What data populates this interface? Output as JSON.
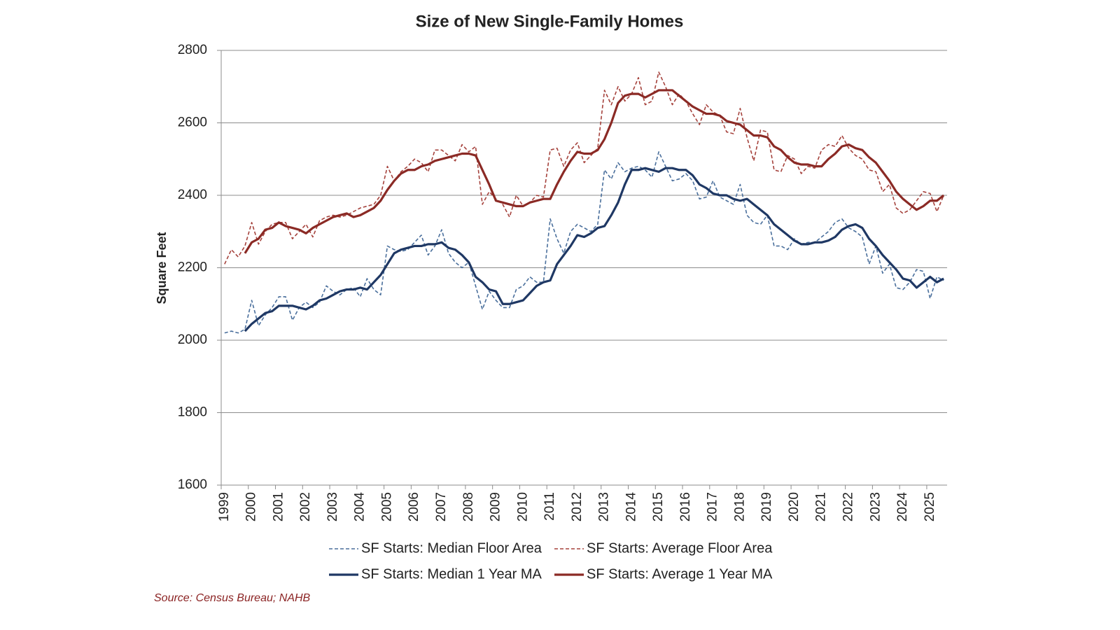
{
  "chart_data": {
    "type": "line",
    "title": "Size of New Single-Family Homes",
    "y_label": "Square Feet",
    "source": "Source: Census Bureau; NAHB",
    "ylim": [
      1600,
      2800
    ],
    "yticks": [
      1600,
      1800,
      2000,
      2200,
      2400,
      2600,
      2800
    ],
    "grid": true,
    "legend": "bottom",
    "categories": [
      "1999",
      null,
      null,
      null,
      "2000",
      null,
      null,
      null,
      "2001",
      null,
      null,
      null,
      "2002",
      null,
      null,
      null,
      "2003",
      null,
      null,
      null,
      "2004",
      null,
      null,
      null,
      "2005",
      null,
      null,
      null,
      "2006",
      null,
      null,
      null,
      "2007",
      null,
      null,
      null,
      "2008",
      null,
      null,
      null,
      "2009",
      null,
      null,
      null,
      "2010",
      null,
      null,
      null,
      "2011",
      null,
      null,
      null,
      "2012",
      null,
      null,
      null,
      "2013",
      null,
      null,
      null,
      "2014",
      null,
      null,
      null,
      "2015",
      null,
      null,
      null,
      "2016",
      null,
      null,
      null,
      "2017",
      null,
      null,
      null,
      "2018",
      null,
      null,
      null,
      "2019",
      null,
      null,
      null,
      "2020",
      null,
      null,
      null,
      "2021",
      null,
      null,
      null,
      "2022",
      null,
      null,
      null,
      "2023",
      null,
      null,
      null,
      "2024",
      null,
      null,
      null,
      "2025",
      null,
      null
    ],
    "series": [
      {
        "name": "SF Starts: Median Floor Area",
        "color": "#4a6f9c",
        "style": "dashed",
        "values": [
          2020,
          2025,
          2020,
          2030,
          2110,
          2040,
          2070,
          2090,
          2120,
          2120,
          2055,
          2090,
          2105,
          2090,
          2105,
          2150,
          2135,
          2125,
          2140,
          2145,
          2120,
          2170,
          2140,
          2125,
          2260,
          2250,
          2245,
          2250,
          2270,
          2290,
          2235,
          2260,
          2305,
          2240,
          2215,
          2200,
          2215,
          2150,
          2085,
          2135,
          2110,
          2090,
          2090,
          2140,
          2150,
          2175,
          2160,
          2160,
          2335,
          2280,
          2240,
          2300,
          2320,
          2310,
          2300,
          2320,
          2470,
          2445,
          2490,
          2465,
          2475,
          2480,
          2470,
          2450,
          2520,
          2480,
          2440,
          2445,
          2460,
          2440,
          2390,
          2395,
          2440,
          2395,
          2385,
          2375,
          2430,
          2345,
          2325,
          2320,
          2345,
          2260,
          2260,
          2250,
          2280,
          2265,
          2270,
          2270,
          2285,
          2300,
          2325,
          2335,
          2310,
          2300,
          2285,
          2210,
          2260,
          2185,
          2210,
          2145,
          2140,
          2160,
          2195,
          2190,
          2115,
          2175,
          2165
        ]
      },
      {
        "name": "SF Starts: Average Floor Area",
        "color": "#a5423c",
        "style": "dashed",
        "values": [
          2210,
          2250,
          2230,
          2260,
          2325,
          2265,
          2300,
          2320,
          2325,
          2325,
          2280,
          2300,
          2320,
          2285,
          2330,
          2340,
          2345,
          2340,
          2345,
          2355,
          2365,
          2370,
          2375,
          2400,
          2480,
          2440,
          2465,
          2480,
          2500,
          2490,
          2465,
          2525,
          2525,
          2510,
          2495,
          2540,
          2520,
          2535,
          2375,
          2410,
          2390,
          2375,
          2340,
          2400,
          2370,
          2380,
          2400,
          2395,
          2525,
          2530,
          2480,
          2525,
          2545,
          2490,
          2510,
          2530,
          2690,
          2650,
          2700,
          2660,
          2680,
          2725,
          2650,
          2660,
          2740,
          2700,
          2650,
          2680,
          2660,
          2625,
          2595,
          2650,
          2630,
          2620,
          2575,
          2570,
          2640,
          2560,
          2495,
          2580,
          2575,
          2470,
          2465,
          2510,
          2500,
          2460,
          2480,
          2475,
          2525,
          2540,
          2535,
          2565,
          2530,
          2510,
          2500,
          2470,
          2465,
          2410,
          2430,
          2365,
          2350,
          2360,
          2385,
          2410,
          2405,
          2355,
          2400
        ]
      },
      {
        "name": "SF Starts: Median 1 Year MA",
        "color": "#1f3864",
        "style": "solid",
        "values": [
          null,
          null,
          null,
          2025,
          2045,
          2060,
          2075,
          2080,
          2095,
          2095,
          2095,
          2090,
          2085,
          2095,
          2110,
          2115,
          2125,
          2135,
          2140,
          2140,
          2145,
          2140,
          2160,
          2180,
          2210,
          2240,
          2250,
          2255,
          2260,
          2260,
          2265,
          2265,
          2270,
          2255,
          2250,
          2235,
          2215,
          2175,
          2160,
          2140,
          2135,
          2100,
          2100,
          2105,
          2110,
          2130,
          2150,
          2160,
          2165,
          2210,
          2235,
          2260,
          2290,
          2285,
          2295,
          2310,
          2315,
          2345,
          2380,
          2430,
          2470,
          2470,
          2475,
          2470,
          2465,
          2475,
          2475,
          2470,
          2470,
          2455,
          2430,
          2420,
          2405,
          2400,
          2400,
          2390,
          2385,
          2390,
          2375,
          2360,
          2345,
          2320,
          2305,
          2290,
          2275,
          2265,
          2265,
          2270,
          2270,
          2275,
          2285,
          2305,
          2315,
          2320,
          2310,
          2280,
          2260,
          2235,
          2215,
          2195,
          2170,
          2165,
          2145,
          2160,
          2175,
          2160,
          2170
        ]
      },
      {
        "name": "SF Starts: Average 1 Year MA",
        "color": "#8b2a25",
        "style": "solid",
        "values": [
          null,
          null,
          null,
          2240,
          2270,
          2280,
          2305,
          2310,
          2325,
          2315,
          2310,
          2305,
          2295,
          2310,
          2320,
          2330,
          2340,
          2345,
          2350,
          2340,
          2345,
          2355,
          2365,
          2385,
          2415,
          2440,
          2460,
          2470,
          2470,
          2480,
          2485,
          2495,
          2500,
          2505,
          2510,
          2515,
          2515,
          2510,
          2470,
          2430,
          2385,
          2380,
          2375,
          2370,
          2370,
          2380,
          2385,
          2390,
          2390,
          2430,
          2465,
          2495,
          2520,
          2515,
          2515,
          2525,
          2555,
          2600,
          2655,
          2675,
          2680,
          2680,
          2670,
          2680,
          2690,
          2690,
          2690,
          2675,
          2660,
          2645,
          2635,
          2625,
          2625,
          2620,
          2605,
          2600,
          2595,
          2580,
          2565,
          2565,
          2560,
          2535,
          2525,
          2505,
          2490,
          2485,
          2485,
          2480,
          2480,
          2500,
          2515,
          2535,
          2540,
          2530,
          2525,
          2505,
          2490,
          2465,
          2440,
          2410,
          2390,
          2375,
          2360,
          2370,
          2385,
          2385,
          2400
        ]
      }
    ]
  }
}
